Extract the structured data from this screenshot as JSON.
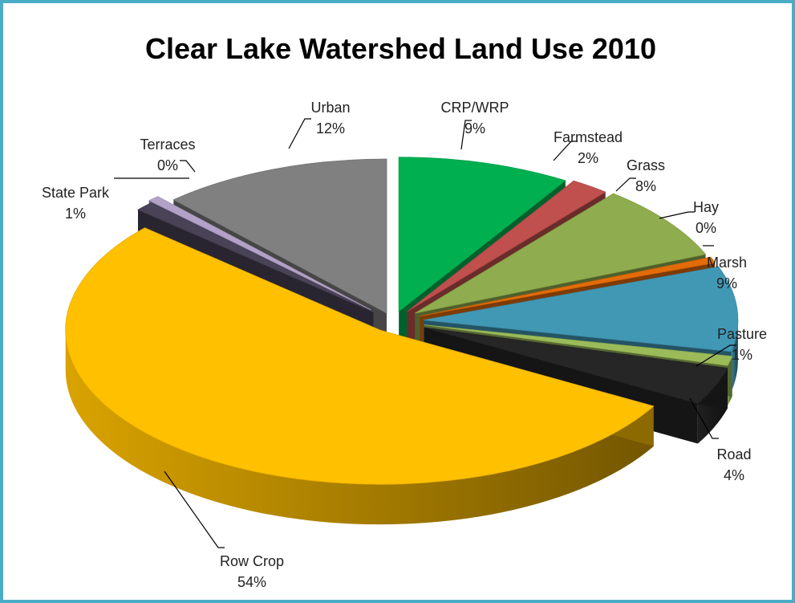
{
  "chart_data": {
    "type": "pie",
    "title": "Clear Lake Watershed Land Use 2010",
    "slices": [
      {
        "name": "CRP/WRP",
        "value": 9,
        "label": "9%",
        "color": "#00b050"
      },
      {
        "name": "Farmstead",
        "value": 2,
        "label": "2%",
        "color": "#c0504d"
      },
      {
        "name": "Grass",
        "value": 8,
        "label": "8%",
        "color": "#8fad4e"
      },
      {
        "name": "Hay",
        "value": 0,
        "label": "0%",
        "color": "#e36c09"
      },
      {
        "name": "Marsh",
        "value": 9,
        "label": "9%",
        "color": "#4198b5"
      },
      {
        "name": "Pasture",
        "value": 1,
        "label": "1%",
        "color": "#9bbb59"
      },
      {
        "name": "Road",
        "value": 4,
        "label": "4%",
        "color": "#262626"
      },
      {
        "name": "Row Crop",
        "value": 54,
        "label": "54%",
        "color": "#ffc000"
      },
      {
        "name": "State Park",
        "value": 1,
        "label": "1%",
        "color": "#4a4358"
      },
      {
        "name": "Terraces",
        "value": 0,
        "label": "0%",
        "color": "#b3a2c7"
      },
      {
        "name": "Urban",
        "value": 12,
        "label": "12%",
        "color": "#808080"
      }
    ],
    "data_labels": "category name and percentage",
    "style": "exploded 3D pie"
  },
  "frame": {
    "border_color": "#4bacc6"
  }
}
